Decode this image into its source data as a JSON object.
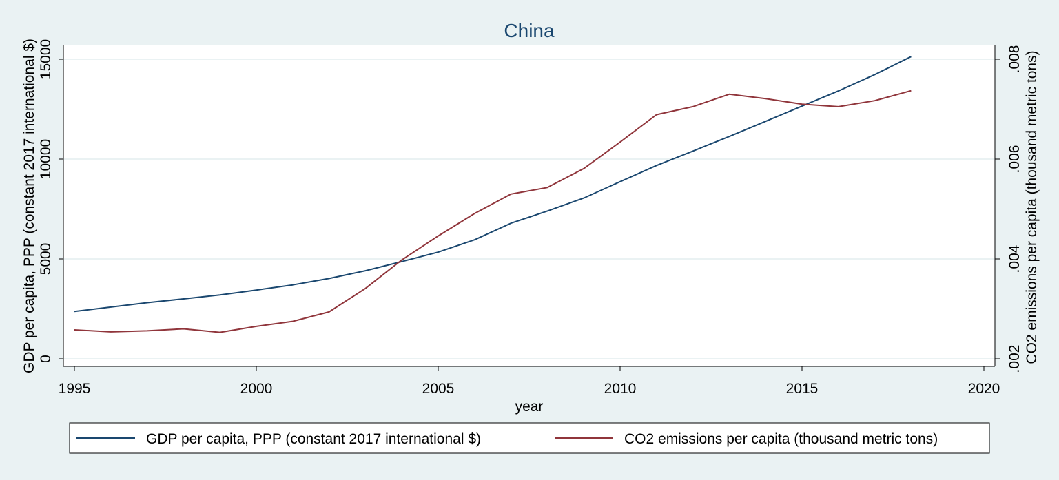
{
  "chart_data": {
    "type": "line",
    "title": "China",
    "xlabel": "year",
    "ylabel_left": "GDP per capita, PPP (constant 2017 international $)",
    "ylabel_right": "CO2 emissions per capita (thousand metric tons)",
    "xlim": [
      1995,
      2020
    ],
    "ylim_left": [
      0,
      15000
    ],
    "ylim_right": [
      0.002,
      0.008
    ],
    "x_ticks": [
      1995,
      2000,
      2005,
      2010,
      2015,
      2020
    ],
    "y_ticks_left": [
      0,
      5000,
      10000,
      15000
    ],
    "y_ticks_right": [
      0.002,
      0.004,
      0.006,
      0.008
    ],
    "y_tick_labels_right": [
      ".002",
      ".004",
      ".006",
      ".008"
    ],
    "grid": true,
    "legend_position": "bottom",
    "series": [
      {
        "name": "GDP per capita, PPP (constant 2017 international $)",
        "axis": "left",
        "color": "#1a476f",
        "x": [
          1995,
          1996,
          1997,
          1998,
          1999,
          2000,
          2001,
          2002,
          2003,
          2004,
          2005,
          2006,
          2007,
          2008,
          2009,
          2010,
          2011,
          2012,
          2013,
          2014,
          2015,
          2016,
          2017,
          2018
        ],
        "values": [
          2370,
          2590,
          2810,
          3000,
          3200,
          3440,
          3700,
          4020,
          4410,
          4870,
          5340,
          5960,
          6790,
          7400,
          8050,
          8870,
          9680,
          10400,
          11130,
          11890,
          12650,
          13410,
          14230,
          15130
        ]
      },
      {
        "name": "CO2 emissions per capita (thousand metric tons)",
        "axis": "right",
        "color": "#90353b",
        "x": [
          1995,
          1996,
          1997,
          1998,
          1999,
          2000,
          2001,
          2002,
          2003,
          2004,
          2005,
          2006,
          2007,
          2008,
          2009,
          2010,
          2011,
          2012,
          2013,
          2014,
          2015,
          2016,
          2017,
          2018
        ],
        "values": [
          0.00258,
          0.00254,
          0.00256,
          0.0026,
          0.00253,
          0.00265,
          0.00275,
          0.00294,
          0.00341,
          0.00398,
          0.00446,
          0.00491,
          0.0053,
          0.00543,
          0.00581,
          0.00634,
          0.00689,
          0.00705,
          0.0073,
          0.00721,
          0.0071,
          0.00705,
          0.00717,
          0.00737
        ]
      }
    ]
  }
}
